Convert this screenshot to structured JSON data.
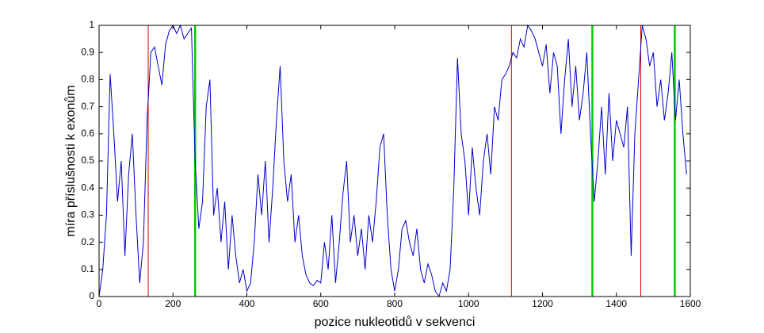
{
  "chart_data": {
    "type": "line",
    "xlabel": "pozice nukleotidů v sekvenci",
    "ylabel": "míra příslušnosti k exonům",
    "xlim": [
      0,
      1600
    ],
    "ylim": [
      0,
      1
    ],
    "xticks": [
      0,
      200,
      400,
      600,
      800,
      1000,
      1200,
      1400,
      1600
    ],
    "yticks": [
      0,
      0.1,
      0.2,
      0.3,
      0.4,
      0.5,
      0.6,
      0.7,
      0.8,
      0.9,
      1
    ],
    "x": [
      0,
      10,
      20,
      30,
      40,
      50,
      60,
      70,
      80,
      90,
      100,
      110,
      120,
      130,
      140,
      150,
      160,
      170,
      180,
      190,
      200,
      210,
      220,
      230,
      240,
      250,
      260,
      270,
      280,
      290,
      300,
      310,
      320,
      330,
      340,
      350,
      360,
      370,
      380,
      390,
      400,
      410,
      420,
      430,
      440,
      450,
      460,
      470,
      480,
      490,
      500,
      510,
      520,
      530,
      540,
      550,
      560,
      570,
      580,
      590,
      600,
      610,
      620,
      630,
      640,
      650,
      660,
      670,
      680,
      690,
      700,
      710,
      720,
      730,
      740,
      750,
      760,
      770,
      780,
      790,
      800,
      810,
      820,
      830,
      840,
      850,
      860,
      870,
      880,
      890,
      900,
      910,
      920,
      930,
      940,
      950,
      960,
      970,
      980,
      990,
      1000,
      1010,
      1020,
      1030,
      1040,
      1050,
      1060,
      1070,
      1080,
      1090,
      1100,
      1110,
      1120,
      1130,
      1140,
      1150,
      1160,
      1170,
      1180,
      1190,
      1200,
      1210,
      1220,
      1230,
      1240,
      1250,
      1260,
      1270,
      1280,
      1290,
      1300,
      1310,
      1320,
      1330,
      1340,
      1350,
      1360,
      1370,
      1380,
      1390,
      1400,
      1410,
      1420,
      1430,
      1440,
      1450,
      1460,
      1470,
      1480,
      1490,
      1500,
      1510,
      1520,
      1530,
      1540,
      1550,
      1560,
      1570,
      1580,
      1590
    ],
    "series": [
      {
        "color": "#0000cc",
        "values": [
          0.0,
          0.1,
          0.3,
          0.82,
          0.6,
          0.35,
          0.5,
          0.15,
          0.45,
          0.6,
          0.3,
          0.05,
          0.2,
          0.65,
          0.9,
          0.92,
          0.85,
          0.78,
          0.93,
          0.98,
          1.0,
          0.97,
          1.0,
          0.95,
          0.97,
          0.99,
          0.5,
          0.25,
          0.35,
          0.7,
          0.8,
          0.3,
          0.4,
          0.2,
          0.35,
          0.1,
          0.3,
          0.15,
          0.05,
          0.1,
          0.02,
          0.05,
          0.2,
          0.45,
          0.3,
          0.5,
          0.2,
          0.4,
          0.65,
          0.85,
          0.5,
          0.35,
          0.45,
          0.2,
          0.3,
          0.15,
          0.08,
          0.05,
          0.04,
          0.06,
          0.05,
          0.2,
          0.1,
          0.3,
          0.05,
          0.2,
          0.38,
          0.5,
          0.2,
          0.3,
          0.15,
          0.25,
          0.1,
          0.3,
          0.2,
          0.35,
          0.55,
          0.6,
          0.3,
          0.1,
          0.02,
          0.1,
          0.25,
          0.28,
          0.2,
          0.15,
          0.25,
          0.1,
          0.05,
          0.12,
          0.08,
          0.02,
          0.0,
          0.05,
          0.02,
          0.1,
          0.4,
          0.88,
          0.6,
          0.5,
          0.3,
          0.55,
          0.4,
          0.3,
          0.5,
          0.6,
          0.45,
          0.7,
          0.65,
          0.8,
          0.82,
          0.85,
          0.9,
          0.88,
          0.95,
          0.92,
          1.0,
          0.98,
          0.95,
          0.9,
          0.85,
          0.93,
          0.75,
          0.9,
          0.85,
          0.6,
          0.8,
          0.95,
          0.7,
          0.85,
          0.65,
          0.75,
          0.9,
          0.6,
          0.35,
          0.5,
          0.7,
          0.45,
          0.75,
          0.5,
          0.65,
          0.6,
          0.55,
          0.7,
          0.15,
          0.6,
          0.8,
          1.0,
          0.95,
          0.85,
          0.9,
          0.7,
          0.8,
          0.65,
          0.75,
          0.9,
          0.65,
          0.8,
          0.6,
          0.45
        ]
      }
    ],
    "vlines": [
      {
        "x": 133,
        "color": "#dd0000",
        "linewidth": 1
      },
      {
        "x": 260,
        "color": "#00cc00",
        "linewidth": 2.5
      },
      {
        "x": 1116,
        "color": "#dd0000",
        "linewidth": 1
      },
      {
        "x": 1335,
        "color": "#00cc00",
        "linewidth": 2.5
      },
      {
        "x": 1466,
        "color": "#dd0000",
        "linewidth": 1
      },
      {
        "x": 1558,
        "color": "#00cc00",
        "linewidth": 2.5
      }
    ]
  }
}
